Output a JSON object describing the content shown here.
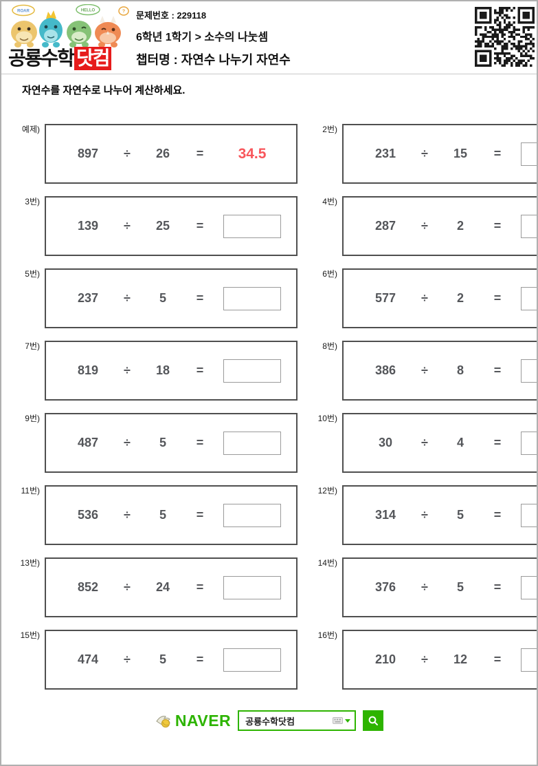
{
  "header": {
    "logo": {
      "main": "공룡수학",
      "suffix": "닷컴",
      "bubbles": {
        "roar": "ROAR",
        "hello": "HELLO",
        "exclaim": "?"
      }
    },
    "problem_number": "문제번호 : 229118",
    "grade_path": "6학년 1학기 > 소수의 나눗셈",
    "chapter": "챕터명 : 자연수 나누기 자연수"
  },
  "instruction": "자연수를 자연수로 나누어 계산하세요.",
  "symbols": {
    "divide": "÷",
    "equals": "="
  },
  "problems": [
    {
      "label": "예제)",
      "dividend": "897",
      "divisor": "26",
      "answer": "34.5"
    },
    {
      "label": "2번)",
      "dividend": "231",
      "divisor": "15",
      "answer": ""
    },
    {
      "label": "3번)",
      "dividend": "139",
      "divisor": "25",
      "answer": ""
    },
    {
      "label": "4번)",
      "dividend": "287",
      "divisor": "2",
      "answer": ""
    },
    {
      "label": "5번)",
      "dividend": "237",
      "divisor": "5",
      "answer": ""
    },
    {
      "label": "6번)",
      "dividend": "577",
      "divisor": "2",
      "answer": ""
    },
    {
      "label": "7번)",
      "dividend": "819",
      "divisor": "18",
      "answer": ""
    },
    {
      "label": "8번)",
      "dividend": "386",
      "divisor": "8",
      "answer": ""
    },
    {
      "label": "9번)",
      "dividend": "487",
      "divisor": "5",
      "answer": ""
    },
    {
      "label": "10번)",
      "dividend": "30",
      "divisor": "4",
      "answer": ""
    },
    {
      "label": "11번)",
      "dividend": "536",
      "divisor": "5",
      "answer": ""
    },
    {
      "label": "12번)",
      "dividend": "314",
      "divisor": "5",
      "answer": ""
    },
    {
      "label": "13번)",
      "dividend": "852",
      "divisor": "24",
      "answer": ""
    },
    {
      "label": "14번)",
      "dividend": "376",
      "divisor": "5",
      "answer": ""
    },
    {
      "label": "15번)",
      "dividend": "474",
      "divisor": "5",
      "answer": ""
    },
    {
      "label": "16번)",
      "dividend": "210",
      "divisor": "12",
      "answer": ""
    }
  ],
  "footer": {
    "naver_logo": "NAVER",
    "search_value": "공룡수학닷컴"
  },
  "colors": {
    "answer_red": "#f8565b",
    "naver_green": "#2db400",
    "number_gray": "#54565a",
    "logo_red": "#e61b1b",
    "box_border": "#4f4f4f"
  }
}
